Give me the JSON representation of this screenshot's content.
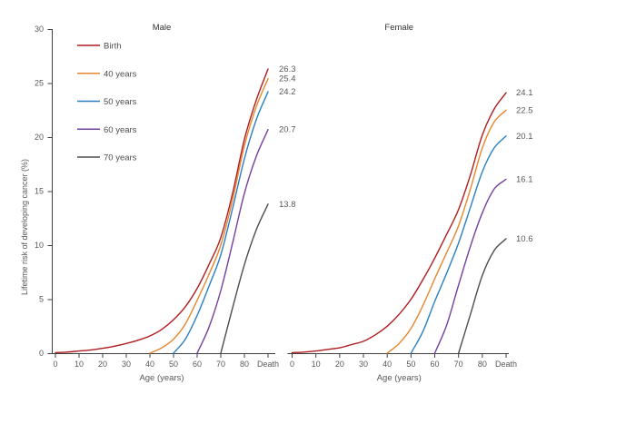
{
  "figure_title": "",
  "colors": {
    "background": "#ffffff",
    "axis": "#3f3f3f",
    "tick_text": "#595959",
    "panel_title_text": "#333333",
    "end_label_text": "#595959",
    "legend_text": "#4d4d4d"
  },
  "chart_data": {
    "type": "line",
    "xlabel": "Age (years)",
    "ylabel": "Lifetime risk of developing cancer (%)",
    "ylim": [
      0,
      30
    ],
    "y_ticks": [
      0,
      5,
      10,
      15,
      20,
      25,
      30
    ],
    "x_ticks": [
      {
        "age": 0,
        "label": "0"
      },
      {
        "age": 10,
        "label": "10"
      },
      {
        "age": 20,
        "label": "20"
      },
      {
        "age": 30,
        "label": "30"
      },
      {
        "age": 40,
        "label": "40"
      },
      {
        "age": 50,
        "label": "50"
      },
      {
        "age": 60,
        "label": "60"
      },
      {
        "age": 70,
        "label": "70"
      },
      {
        "age": 80,
        "label": "80"
      },
      {
        "age": 90,
        "label": "Death"
      }
    ],
    "legend": {
      "position": "top-left",
      "entries": [
        "Birth",
        "40 years",
        "50 years",
        "60 years",
        "70 years"
      ]
    },
    "series_colors": [
      "#b01c20",
      "#e6862e",
      "#2a7fc1",
      "#73409d",
      "#4d4d4d"
    ],
    "panels": [
      {
        "title": "Male",
        "series": [
          {
            "name": "Birth",
            "color": "#b01c20",
            "end_label": "26.3",
            "points": [
              [
                0,
                0.05
              ],
              [
                5,
                0.1
              ],
              [
                10,
                0.2
              ],
              [
                15,
                0.3
              ],
              [
                20,
                0.45
              ],
              [
                25,
                0.65
              ],
              [
                30,
                0.9
              ],
              [
                35,
                1.2
              ],
              [
                40,
                1.6
              ],
              [
                45,
                2.2
              ],
              [
                50,
                3.1
              ],
              [
                55,
                4.3
              ],
              [
                60,
                6.0
              ],
              [
                65,
                8.2
              ],
              [
                70,
                10.7
              ],
              [
                75,
                14.8
              ],
              [
                80,
                19.8
              ],
              [
                85,
                23.4
              ],
              [
                90,
                26.3
              ]
            ]
          },
          {
            "name": "40 years",
            "color": "#e6862e",
            "end_label": "25.4",
            "points": [
              [
                40,
                0
              ],
              [
                45,
                0.5
              ],
              [
                50,
                1.3
              ],
              [
                55,
                2.7
              ],
              [
                60,
                4.9
              ],
              [
                65,
                7.3
              ],
              [
                70,
                10.0
              ],
              [
                75,
                14.2
              ],
              [
                80,
                19.2
              ],
              [
                85,
                22.8
              ],
              [
                90,
                25.4
              ]
            ]
          },
          {
            "name": "50 years",
            "color": "#2a7fc1",
            "end_label": "24.2",
            "points": [
              [
                50,
                0
              ],
              [
                55,
                1.3
              ],
              [
                60,
                3.5
              ],
              [
                65,
                6.2
              ],
              [
                70,
                9.1
              ],
              [
                75,
                13.4
              ],
              [
                80,
                18.0
              ],
              [
                85,
                21.6
              ],
              [
                90,
                24.2
              ]
            ]
          },
          {
            "name": "60 years",
            "color": "#73409d",
            "end_label": "20.7",
            "points": [
              [
                60,
                0
              ],
              [
                65,
                2.4
              ],
              [
                70,
                5.8
              ],
              [
                75,
                10.2
              ],
              [
                80,
                14.8
              ],
              [
                85,
                18.2
              ],
              [
                90,
                20.7
              ]
            ]
          },
          {
            "name": "70 years",
            "color": "#4d4d4d",
            "end_label": "13.8",
            "points": [
              [
                70,
                0
              ],
              [
                75,
                4.2
              ],
              [
                80,
                8.2
              ],
              [
                85,
                11.4
              ],
              [
                90,
                13.8
              ]
            ]
          }
        ]
      },
      {
        "title": "Female",
        "series": [
          {
            "name": "Birth",
            "color": "#b01c20",
            "end_label": "24.1",
            "points": [
              [
                0,
                0.05
              ],
              [
                5,
                0.1
              ],
              [
                10,
                0.2
              ],
              [
                15,
                0.35
              ],
              [
                20,
                0.5
              ],
              [
                25,
                0.8
              ],
              [
                30,
                1.1
              ],
              [
                35,
                1.7
              ],
              [
                40,
                2.5
              ],
              [
                45,
                3.6
              ],
              [
                50,
                5.0
              ],
              [
                55,
                6.8
              ],
              [
                60,
                8.8
              ],
              [
                65,
                11.0
              ],
              [
                70,
                13.3
              ],
              [
                75,
                16.5
              ],
              [
                80,
                20.2
              ],
              [
                85,
                22.6
              ],
              [
                90,
                24.1
              ]
            ]
          },
          {
            "name": "40 years",
            "color": "#e6862e",
            "end_label": "22.5",
            "points": [
              [
                40,
                0
              ],
              [
                45,
                0.9
              ],
              [
                50,
                2.3
              ],
              [
                55,
                4.4
              ],
              [
                60,
                6.9
              ],
              [
                65,
                9.3
              ],
              [
                70,
                11.8
              ],
              [
                75,
                15.2
              ],
              [
                80,
                19.0
              ],
              [
                85,
                21.4
              ],
              [
                90,
                22.5
              ]
            ]
          },
          {
            "name": "50 years",
            "color": "#2a7fc1",
            "end_label": "20.1",
            "points": [
              [
                50,
                0
              ],
              [
                55,
                2.0
              ],
              [
                60,
                4.8
              ],
              [
                65,
                7.4
              ],
              [
                70,
                10.2
              ],
              [
                75,
                13.5
              ],
              [
                80,
                16.8
              ],
              [
                85,
                19.0
              ],
              [
                90,
                20.1
              ]
            ]
          },
          {
            "name": "60 years",
            "color": "#73409d",
            "end_label": "16.1",
            "points": [
              [
                60,
                0
              ],
              [
                65,
                2.6
              ],
              [
                70,
                6.3
              ],
              [
                75,
                9.9
              ],
              [
                80,
                13.0
              ],
              [
                85,
                15.2
              ],
              [
                90,
                16.1
              ]
            ]
          },
          {
            "name": "70 years",
            "color": "#4d4d4d",
            "end_label": "10.6",
            "points": [
              [
                70,
                0
              ],
              [
                75,
                3.6
              ],
              [
                80,
                7.2
              ],
              [
                85,
                9.5
              ],
              [
                90,
                10.6
              ]
            ]
          }
        ]
      }
    ]
  }
}
